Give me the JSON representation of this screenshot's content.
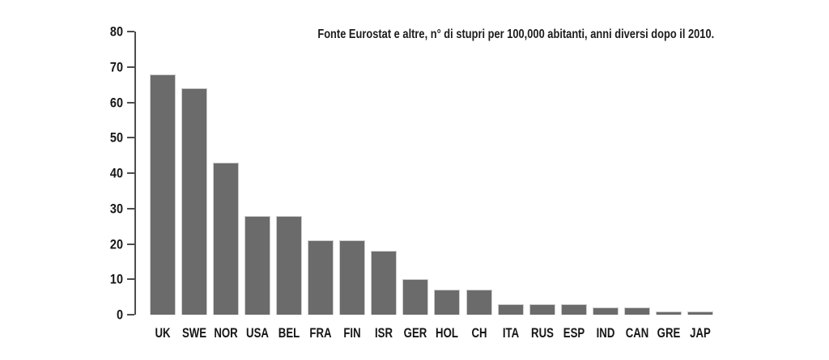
{
  "chart_data": {
    "type": "bar",
    "title": "Fonte Eurostat e altre, n° di stupri per 100,000 abitanti, anni diversi dopo il 2010.",
    "categories": [
      "UK",
      "SWE",
      "NOR",
      "USA",
      "BEL",
      "FRA",
      "FIN",
      "ISR",
      "GER",
      "HOL",
      "CH",
      "ITA",
      "RUS",
      "ESP",
      "IND",
      "CAN",
      "GRE",
      "JAP"
    ],
    "values": [
      68,
      64,
      43,
      28,
      28,
      21,
      21,
      18,
      10,
      7,
      7,
      3,
      3,
      3,
      2,
      2,
      1,
      1
    ],
    "yticks": [
      0,
      10,
      20,
      30,
      40,
      50,
      60,
      70,
      80
    ],
    "ylim": [
      0,
      80
    ],
    "xlabel": "",
    "ylabel": "",
    "grid": false,
    "legend": null,
    "colors": {
      "bar_fill": "#6b6b6b",
      "bar_border": "#cdcdcd",
      "axis": "#4d4d4d",
      "text": "#161616",
      "background": "#ffffff"
    }
  }
}
